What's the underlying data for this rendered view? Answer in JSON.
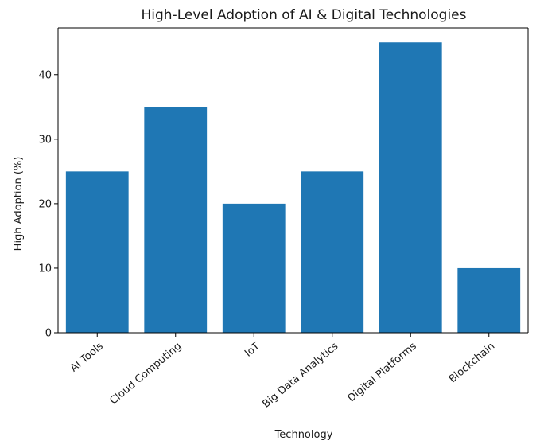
{
  "chart_data": {
    "type": "bar",
    "title": "High-Level Adoption of AI & Digital Technologies",
    "xlabel": "Technology",
    "ylabel": "High Adoption (%)",
    "categories": [
      "AI Tools",
      "Cloud Computing",
      "IoT",
      "Big Data Analytics",
      "Digital Platforms",
      "Blockchain"
    ],
    "values": [
      25,
      35,
      20,
      25,
      45,
      10
    ],
    "ylim": [
      0,
      47.25
    ],
    "yticks": [
      0,
      10,
      20,
      30,
      40
    ],
    "bar_color": "#1f77b4",
    "grid": false,
    "legend": "none",
    "xtick_rotation": "45 degrees"
  }
}
